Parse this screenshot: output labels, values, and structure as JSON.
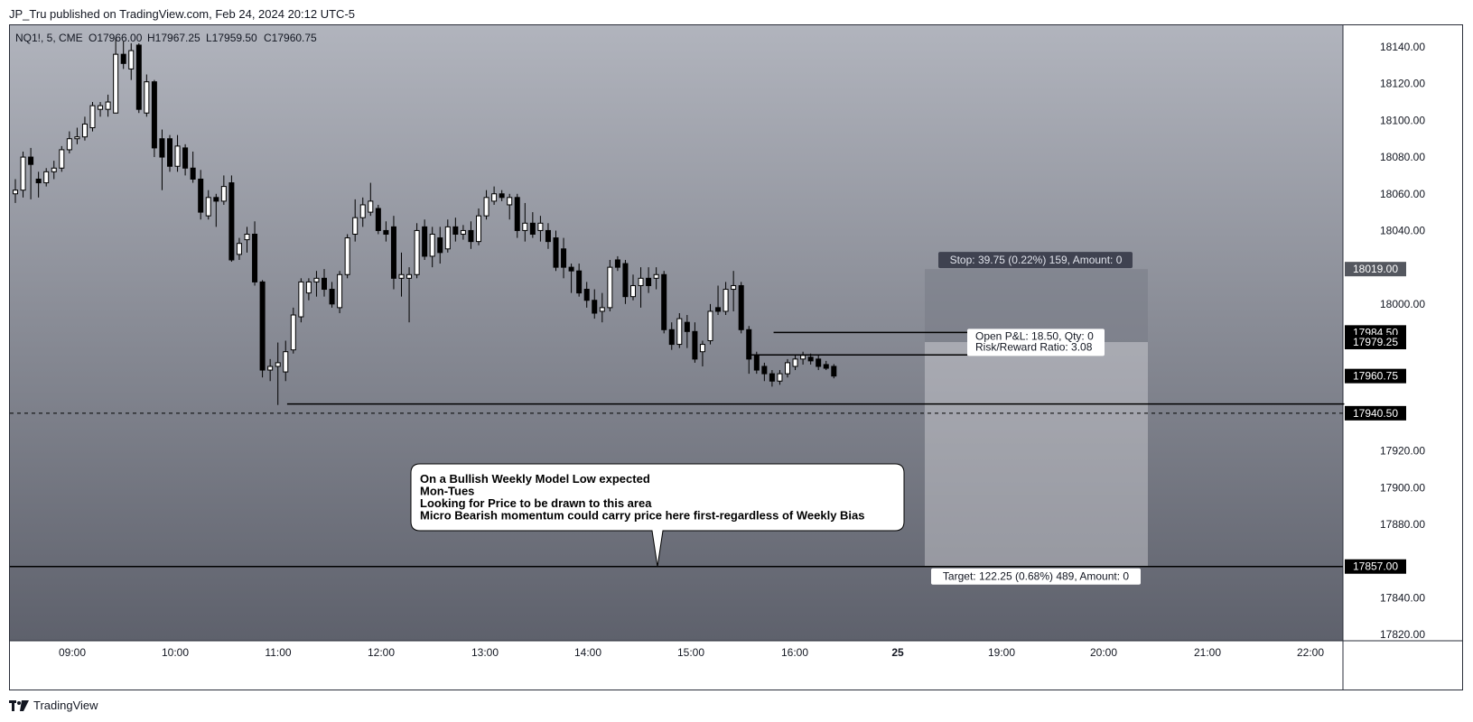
{
  "header": {
    "publisher_line": "JP_Tru published on TradingView.com, Feb 24, 2024 20:12 UTC-5"
  },
  "footer": {
    "brand": "TradingView",
    "logo_icon": "tradingview-logo-icon"
  },
  "chart_data": {
    "type": "candlestick",
    "symbol_label": "NQ1!, 5, CME",
    "ohlc_readout": {
      "open": "O17966.00",
      "high": "H17967.25",
      "low": "L17959.50",
      "close": "C17960.75"
    },
    "y_ticks": [
      "18140.00",
      "18120.00",
      "18100.00",
      "18080.00",
      "18060.00",
      "18040.00",
      "18000.00",
      "17920.00",
      "17900.00",
      "17880.00",
      "17840.00",
      "17820.00"
    ],
    "x_ticks": [
      "09:00",
      "10:00",
      "11:00",
      "12:00",
      "13:00",
      "14:00",
      "15:00",
      "16:00",
      "25",
      "19:00",
      "20:00",
      "21:00",
      "22:00"
    ],
    "ylim": [
      17810,
      18150
    ],
    "price_tags": [
      {
        "label": "18019.00",
        "value": 18019,
        "style": "gray"
      },
      {
        "label": "17984.50",
        "value": 17984.5,
        "style": "dark"
      },
      {
        "label": "17979.25",
        "value": 17979.25,
        "style": "dark"
      },
      {
        "label": "17960.75",
        "value": 17960.75,
        "style": "dark"
      },
      {
        "label": "17940.50",
        "value": 17940.5,
        "style": "dark"
      },
      {
        "label": "17857.00",
        "value": 17857,
        "style": "dark"
      }
    ],
    "horizontal_lines": [
      {
        "value": 17945.5,
        "from": "11:05",
        "to": "21:20",
        "style": "solid"
      },
      {
        "value": 17940.5,
        "style": "dashed",
        "full": true
      },
      {
        "value": 17857,
        "style": "solid",
        "full": true
      }
    ],
    "position_tool": {
      "entry": 17979.25,
      "stop": 18019.0,
      "target": 17857.0,
      "stop_label": "Stop: 39.75 (0.22%) 159, Amount: 0",
      "target_label": "Target: 122.25 (0.68%) 489, Amount: 0",
      "pnl_label_line1": "Open P&L: 18.50, Qty: 0",
      "pnl_label_line2": "Risk/Reward Ratio: 3.08"
    },
    "annotation": {
      "lines": [
        "On a Bullish Weekly Model Low expected",
        "Mon-Tues",
        "Looking for Price to be drawn to this area",
        "Micro Bearish momentum could carry price here first-regardless of Weekly Bias"
      ]
    },
    "candles": [
      {
        "o": 18060,
        "h": 18068,
        "l": 18055,
        "c": 18062
      },
      {
        "o": 18062,
        "h": 18083,
        "l": 18058,
        "c": 18080
      },
      {
        "o": 18080,
        "h": 18085,
        "l": 18057,
        "c": 18076
      },
      {
        "o": 18068,
        "h": 18072,
        "l": 18058,
        "c": 18066
      },
      {
        "o": 18066,
        "h": 18074,
        "l": 18064,
        "c": 18072
      },
      {
        "o": 18072,
        "h": 18078,
        "l": 18068,
        "c": 18074
      },
      {
        "o": 18074,
        "h": 18086,
        "l": 18072,
        "c": 18084
      },
      {
        "o": 18084,
        "h": 18094,
        "l": 18082,
        "c": 18090
      },
      {
        "o": 18090,
        "h": 18096,
        "l": 18087,
        "c": 18091
      },
      {
        "o": 18091,
        "h": 18102,
        "l": 18089,
        "c": 18098
      },
      {
        "o": 18096,
        "h": 18110,
        "l": 18094,
        "c": 18108
      },
      {
        "o": 18106,
        "h": 18110,
        "l": 18102,
        "c": 18108
      },
      {
        "o": 18106,
        "h": 18114,
        "l": 18102,
        "c": 18110
      },
      {
        "o": 18104,
        "h": 18145,
        "l": 18104,
        "c": 18136
      },
      {
        "o": 18136,
        "h": 18143,
        "l": 18128,
        "c": 18131
      },
      {
        "o": 18128,
        "h": 18142,
        "l": 18122,
        "c": 18138
      },
      {
        "o": 18141,
        "h": 18142,
        "l": 18104,
        "c": 18106
      },
      {
        "o": 18104,
        "h": 18125,
        "l": 18102,
        "c": 18121
      },
      {
        "o": 18121,
        "h": 18122,
        "l": 18080,
        "c": 18085
      },
      {
        "o": 18090,
        "h": 18095,
        "l": 18062,
        "c": 18080
      },
      {
        "o": 18090,
        "h": 18092,
        "l": 18072,
        "c": 18075
      },
      {
        "o": 18075,
        "h": 18092,
        "l": 18072,
        "c": 18086
      },
      {
        "o": 18085,
        "h": 18087,
        "l": 18070,
        "c": 18074
      },
      {
        "o": 18074,
        "h": 18083,
        "l": 18066,
        "c": 18068
      },
      {
        "o": 18068,
        "h": 18073,
        "l": 18046,
        "c": 18050
      },
      {
        "o": 18048,
        "h": 18062,
        "l": 18046,
        "c": 18058
      },
      {
        "o": 18058,
        "h": 18060,
        "l": 18042,
        "c": 18056
      },
      {
        "o": 18056,
        "h": 18070,
        "l": 18054,
        "c": 18064
      },
      {
        "o": 18066,
        "h": 18070,
        "l": 18023,
        "c": 18024
      },
      {
        "o": 18027,
        "h": 18036,
        "l": 18024,
        "c": 18033
      },
      {
        "o": 18035,
        "h": 18042,
        "l": 18028,
        "c": 18038
      },
      {
        "o": 18038,
        "h": 18045,
        "l": 18010,
        "c": 18012
      },
      {
        "o": 18012,
        "h": 18013,
        "l": 17960,
        "c": 17964
      },
      {
        "o": 17964,
        "h": 17970,
        "l": 17958,
        "c": 17966
      },
      {
        "o": 17966,
        "h": 17979,
        "l": 17945,
        "c": 17968
      },
      {
        "o": 17963,
        "h": 17980,
        "l": 17958,
        "c": 17974
      },
      {
        "o": 17975,
        "h": 17998,
        "l": 17973,
        "c": 17994
      },
      {
        "o": 17993,
        "h": 18014,
        "l": 17990,
        "c": 18012
      },
      {
        "o": 18006,
        "h": 18014,
        "l": 18002,
        "c": 18012
      },
      {
        "o": 18012,
        "h": 18018,
        "l": 18004,
        "c": 18014
      },
      {
        "o": 18014,
        "h": 18019,
        "l": 18004,
        "c": 18008
      },
      {
        "o": 18008,
        "h": 18012,
        "l": 17998,
        "c": 18000
      },
      {
        "o": 17998,
        "h": 18018,
        "l": 17995,
        "c": 18016
      },
      {
        "o": 18016,
        "h": 18038,
        "l": 18014,
        "c": 18036
      },
      {
        "o": 18038,
        "h": 18057,
        "l": 18034,
        "c": 18047
      },
      {
        "o": 18047,
        "h": 18058,
        "l": 18042,
        "c": 18054
      },
      {
        "o": 18050,
        "h": 18066,
        "l": 18048,
        "c": 18056
      },
      {
        "o": 18052,
        "h": 18054,
        "l": 18038,
        "c": 18040
      },
      {
        "o": 18040,
        "h": 18045,
        "l": 18034,
        "c": 18038
      },
      {
        "o": 18042,
        "h": 18048,
        "l": 18008,
        "c": 18014
      },
      {
        "o": 18014,
        "h": 18028,
        "l": 18004,
        "c": 18016
      },
      {
        "o": 18014,
        "h": 18020,
        "l": 17990,
        "c": 18016
      },
      {
        "o": 18016,
        "h": 18044,
        "l": 18014,
        "c": 18040
      },
      {
        "o": 18042,
        "h": 18046,
        "l": 18024,
        "c": 18026
      },
      {
        "o": 18026,
        "h": 18042,
        "l": 18020,
        "c": 18038
      },
      {
        "o": 18036,
        "h": 18042,
        "l": 18022,
        "c": 18028
      },
      {
        "o": 18030,
        "h": 18046,
        "l": 18028,
        "c": 18042
      },
      {
        "o": 18042,
        "h": 18047,
        "l": 18034,
        "c": 18038
      },
      {
        "o": 18038,
        "h": 18043,
        "l": 18035,
        "c": 18040
      },
      {
        "o": 18040,
        "h": 18045,
        "l": 18030,
        "c": 18034
      },
      {
        "o": 18034,
        "h": 18052,
        "l": 18032,
        "c": 18048
      },
      {
        "o": 18048,
        "h": 18062,
        "l": 18046,
        "c": 18058
      },
      {
        "o": 18056,
        "h": 18064,
        "l": 18054,
        "c": 18060
      },
      {
        "o": 18060,
        "h": 18062,
        "l": 18056,
        "c": 18058
      },
      {
        "o": 18054,
        "h": 18060,
        "l": 18046,
        "c": 18058
      },
      {
        "o": 18058,
        "h": 18060,
        "l": 18036,
        "c": 18040
      },
      {
        "o": 18040,
        "h": 18055,
        "l": 18034,
        "c": 18044
      },
      {
        "o": 18044,
        "h": 18050,
        "l": 18036,
        "c": 18038
      },
      {
        "o": 18040,
        "h": 18048,
        "l": 18034,
        "c": 18044
      },
      {
        "o": 18040,
        "h": 18044,
        "l": 18030,
        "c": 18034
      },
      {
        "o": 18036,
        "h": 18040,
        "l": 18018,
        "c": 18020
      },
      {
        "o": 18030,
        "h": 18036,
        "l": 18014,
        "c": 18020
      },
      {
        "o": 18020,
        "h": 18022,
        "l": 18006,
        "c": 18018
      },
      {
        "o": 18018,
        "h": 18022,
        "l": 18004,
        "c": 18006
      },
      {
        "o": 18008,
        "h": 18012,
        "l": 17998,
        "c": 18002
      },
      {
        "o": 18002,
        "h": 18008,
        "l": 17992,
        "c": 17995
      },
      {
        "o": 17996,
        "h": 18006,
        "l": 17990,
        "c": 17998
      },
      {
        "o": 17998,
        "h": 18024,
        "l": 17996,
        "c": 18020
      },
      {
        "o": 18024,
        "h": 18026,
        "l": 18018,
        "c": 18020
      },
      {
        "o": 18022,
        "h": 18024,
        "l": 18000,
        "c": 18004
      },
      {
        "o": 18004,
        "h": 18016,
        "l": 18002,
        "c": 18010
      },
      {
        "o": 18010,
        "h": 18020,
        "l": 17998,
        "c": 18014
      },
      {
        "o": 18014,
        "h": 18020,
        "l": 18006,
        "c": 18010
      },
      {
        "o": 18014,
        "h": 18020,
        "l": 18008,
        "c": 18016
      },
      {
        "o": 18016,
        "h": 18018,
        "l": 17984,
        "c": 17986
      },
      {
        "o": 17986,
        "h": 17990,
        "l": 17975,
        "c": 17978
      },
      {
        "o": 17978,
        "h": 17995,
        "l": 17976,
        "c": 17992
      },
      {
        "o": 17990,
        "h": 17994,
        "l": 17976,
        "c": 17985
      },
      {
        "o": 17985,
        "h": 17990,
        "l": 17968,
        "c": 17970
      },
      {
        "o": 17974,
        "h": 17980,
        "l": 17966,
        "c": 17978
      },
      {
        "o": 17980,
        "h": 18000,
        "l": 17978,
        "c": 17996
      },
      {
        "o": 17998,
        "h": 18010,
        "l": 17994,
        "c": 17996
      },
      {
        "o": 17996,
        "h": 18012,
        "l": 17994,
        "c": 18008
      },
      {
        "o": 18008,
        "h": 18018,
        "l": 17996,
        "c": 18010
      },
      {
        "o": 18010,
        "h": 18012,
        "l": 17984,
        "c": 17986
      },
      {
        "o": 17986,
        "h": 17988,
        "l": 17962,
        "c": 17970
      },
      {
        "o": 17972,
        "h": 17974,
        "l": 17962,
        "c": 17964
      },
      {
        "o": 17966,
        "h": 17968,
        "l": 17958,
        "c": 17962
      },
      {
        "o": 17962,
        "h": 17964,
        "l": 17955,
        "c": 17958
      },
      {
        "o": 17958,
        "h": 17964,
        "l": 17956,
        "c": 17962
      },
      {
        "o": 17962,
        "h": 17970,
        "l": 17960,
        "c": 17968
      },
      {
        "o": 17966,
        "h": 17972,
        "l": 17964,
        "c": 17970
      },
      {
        "o": 17970,
        "h": 17974,
        "l": 17967,
        "c": 17972
      },
      {
        "o": 17971,
        "h": 17973,
        "l": 17967,
        "c": 17969
      },
      {
        "o": 17970,
        "h": 17972,
        "l": 17964,
        "c": 17966
      },
      {
        "o": 17967,
        "h": 17969,
        "l": 17964,
        "c": 17965
      },
      {
        "o": 17966,
        "h": 17967.25,
        "l": 17959.5,
        "c": 17960.75
      }
    ]
  },
  "colors": {
    "bg_top": "#b1b4bd",
    "bg_bottom": "#5e616c",
    "bull": "#ffffff",
    "bear": "#000000",
    "text": "#131722"
  }
}
